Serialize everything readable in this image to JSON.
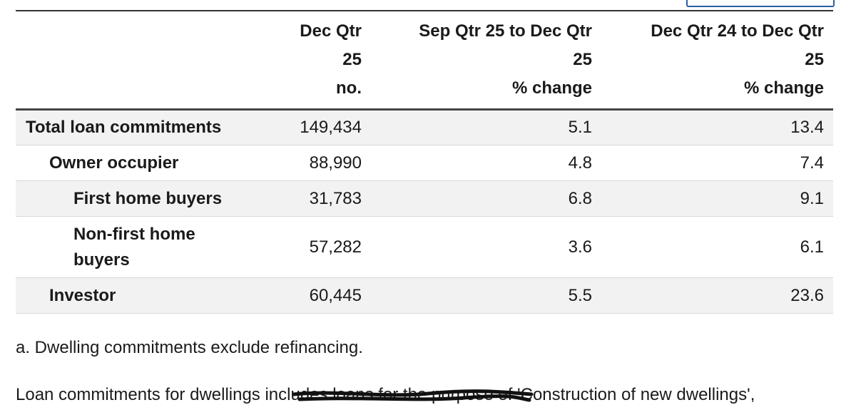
{
  "table": {
    "columns": [
      "Dec Qtr 25",
      "Sep Qtr 25 to Dec Qtr 25",
      "Dec Qtr 24 to Dec Qtr 25"
    ],
    "units": [
      "no.",
      "% change",
      "% change"
    ],
    "rows": [
      [
        "Total loan commitments",
        "149,434",
        "5.1",
        "13.4"
      ],
      [
        "Owner occupier",
        "88,990",
        "4.8",
        "7.4"
      ],
      [
        "First home buyers",
        "31,783",
        "6.8",
        "9.1"
      ],
      [
        "Non-first home buyers",
        "57,282",
        "3.6",
        "6.1"
      ],
      [
        "Investor",
        "60,445",
        "5.5",
        "23.6"
      ]
    ]
  },
  "footnote": "a. Dwelling commitments exclude refinancing.",
  "paragraph": "Loan commitments for dwellings includes loans for the purpose of 'Construction of new dwellings',"
}
